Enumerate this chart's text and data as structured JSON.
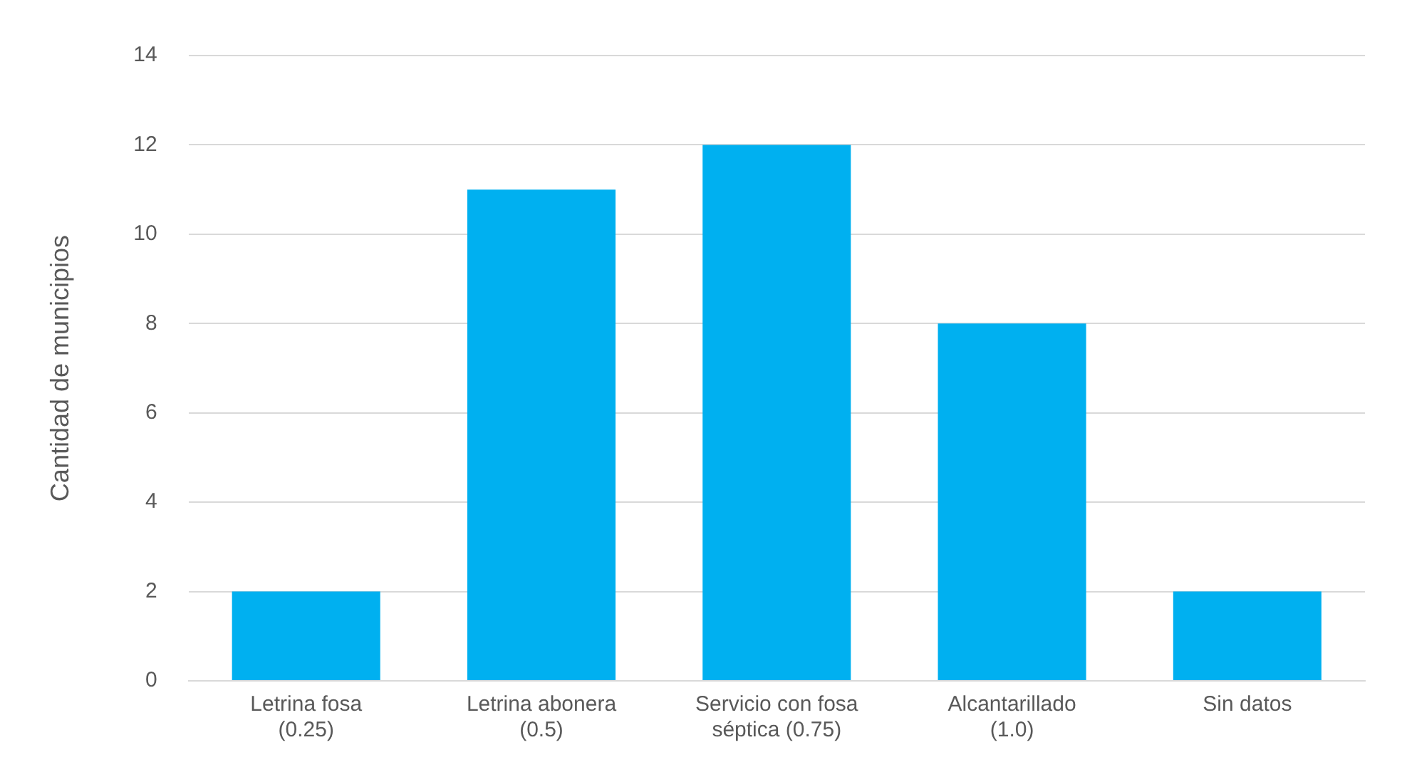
{
  "chart_data": {
    "type": "bar",
    "ylabel": "Cantidad de municipios",
    "categories": [
      "Letrina fosa\n(0.25)",
      "Letrina abonera\n(0.5)",
      "Servicio con fosa\nséptica (0.75)",
      "Alcantarillado\n(1.0)",
      "Sin datos"
    ],
    "values": [
      2,
      11,
      12,
      8,
      2
    ],
    "color": "#00b0f0",
    "ylim": [
      0,
      14
    ],
    "yticks": [
      0,
      2,
      4,
      6,
      8,
      10,
      12,
      14
    ],
    "grid": "y",
    "legend": false
  }
}
